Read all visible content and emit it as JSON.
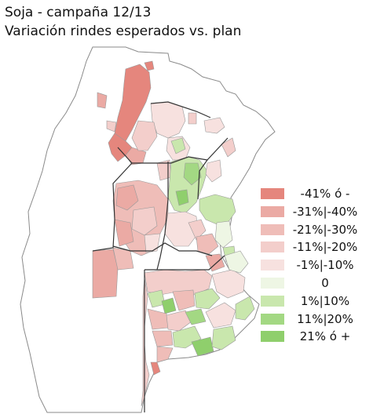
{
  "title": {
    "line1": "Soja - campaña 12/13",
    "line2": "Variación rindes esperados vs. plan"
  },
  "legend": {
    "items": [
      {
        "label": "-41% ó -",
        "color": "#e5867d"
      },
      {
        "label": "-31%|-40%",
        "color": "#ebaaa4"
      },
      {
        "label": "-21%|-30%",
        "color": "#efbdb8"
      },
      {
        "label": "-11%|-20%",
        "color": "#f3cecb"
      },
      {
        "label": "-1%|-10%",
        "color": "#f7e1df"
      },
      {
        "label": "0",
        "color": "#eef6e4"
      },
      {
        "label": "1%|10%",
        "color": "#c9e7ad"
      },
      {
        "label": "11%|20%",
        "color": "#a3d883"
      },
      {
        "label": "21% ó +",
        "color": "#8fcf6c"
      }
    ]
  },
  "colors": {
    "border": "#9a9a9a",
    "province_border": "#333333",
    "no_data": "#ffffff"
  }
}
